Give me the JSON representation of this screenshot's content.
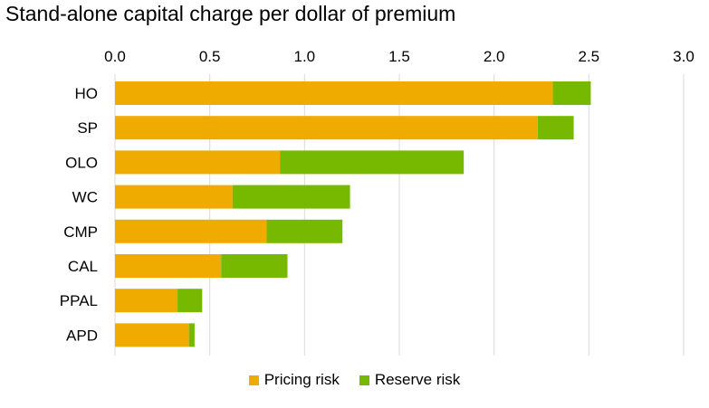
{
  "title": "Stand-alone capital charge per dollar of premium",
  "chart_data": {
    "type": "bar",
    "orientation": "horizontal",
    "stacked": true,
    "title": "Stand-alone capital charge per dollar of premium",
    "categories": [
      "HO",
      "SP",
      "OLO",
      "WC",
      "CMP",
      "CAL",
      "PPAL",
      "APD"
    ],
    "series": [
      {
        "name": "Pricing risk",
        "color": "#F0AB00",
        "values": [
          2.31,
          2.23,
          0.87,
          0.62,
          0.8,
          0.56,
          0.33,
          0.39
        ]
      },
      {
        "name": "Reserve risk",
        "color": "#76B900",
        "values": [
          0.2,
          0.19,
          0.97,
          0.62,
          0.4,
          0.35,
          0.13,
          0.03
        ]
      }
    ],
    "xlim": [
      0,
      3.0
    ],
    "xticks": [
      "0.0",
      "0.5",
      "1.0",
      "1.5",
      "2.0",
      "2.5",
      "3.0"
    ],
    "xtick_values": [
      0,
      0.5,
      1.0,
      1.5,
      2.0,
      2.5,
      3.0
    ],
    "axis_position": "top",
    "grid": true,
    "legend": "bottom-center"
  }
}
